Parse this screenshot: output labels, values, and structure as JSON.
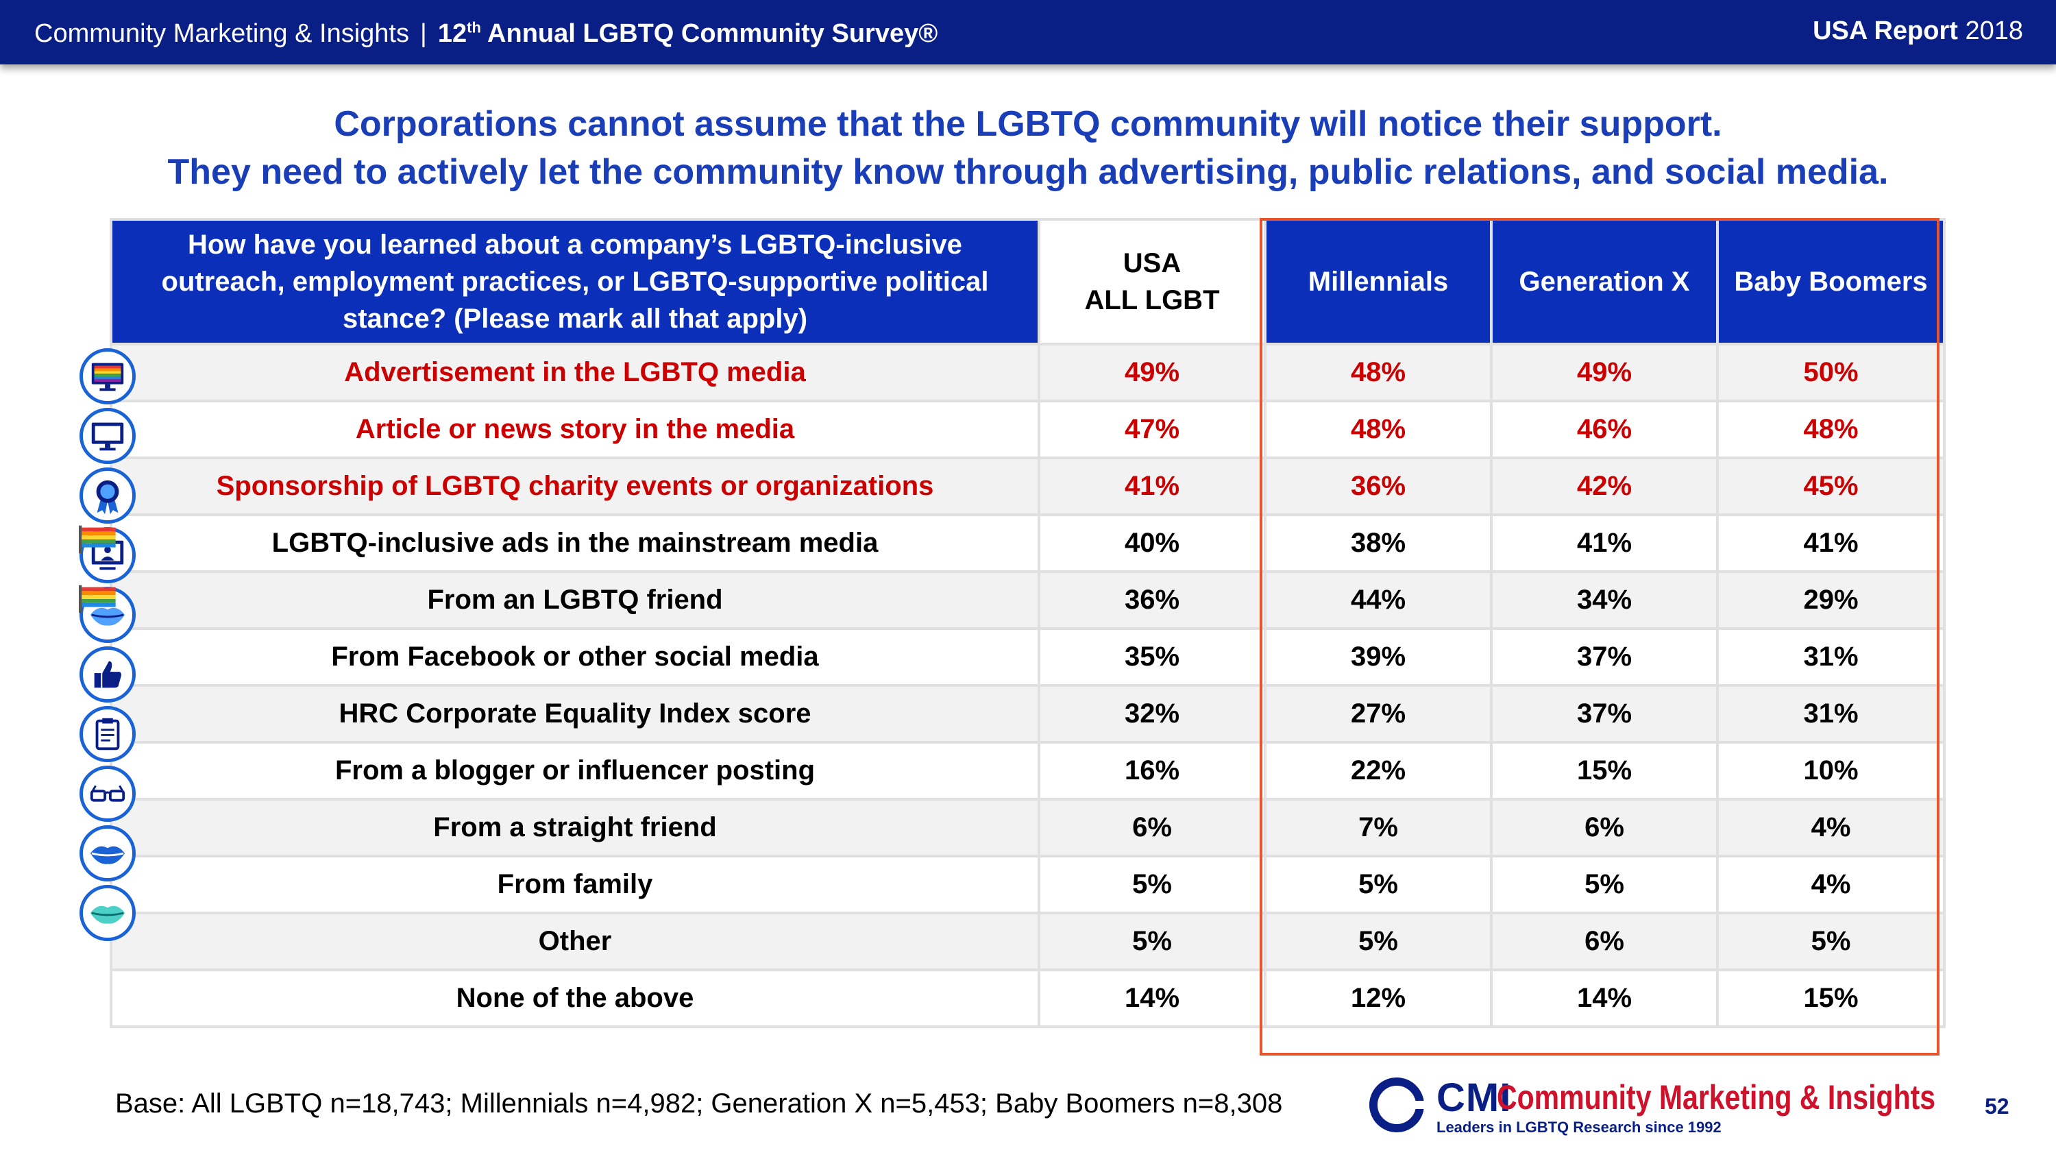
{
  "header": {
    "org": "Community Marketing & Insights",
    "separator": "|",
    "survey_prefix": "12",
    "survey_sup": "th",
    "survey_title": " Annual LGBTQ Community Survey®",
    "report_bold": "USA Report",
    "report_year": " 2018"
  },
  "headline": {
    "line1": "Corporations cannot assume that the LGBTQ community will notice their support.",
    "line2": "They need to actively let the community know through advertising, public relations, and social media."
  },
  "table": {
    "question": "How have you learned about a company’s LGBTQ-inclusive outreach, employment practices, or LGBTQ-supportive political stance? (Please mark all that apply)",
    "col_usa_line1": "USA",
    "col_usa_line2": "ALL LGBT",
    "col_millennials": "Millennials",
    "col_genx": "Generation X",
    "col_boomers": "Baby Boomers",
    "rows": [
      {
        "label": "Advertisement in the LGBTQ media",
        "usa": "49%",
        "mil": "48%",
        "genx": "49%",
        "boom": "50%",
        "highlight": true,
        "icon": "rainbow-monitor-icon"
      },
      {
        "label": "Article or news story in the media",
        "usa": "47%",
        "mil": "48%",
        "genx": "46%",
        "boom": "48%",
        "highlight": true,
        "icon": "monitor-icon"
      },
      {
        "label": "Sponsorship of LGBTQ charity events or organizations",
        "usa": "41%",
        "mil": "36%",
        "genx": "42%",
        "boom": "45%",
        "highlight": true,
        "icon": "award-ribbon-icon"
      },
      {
        "label": "LGBTQ-inclusive ads in the mainstream media",
        "usa": "40%",
        "mil": "38%",
        "genx": "41%",
        "boom": "41%",
        "highlight": false,
        "icon": "presenter-screen-icon"
      },
      {
        "label": "From an LGBTQ friend",
        "usa": "36%",
        "mil": "44%",
        "genx": "34%",
        "boom": "29%",
        "highlight": false,
        "icon": "lips-icon"
      },
      {
        "label": "From Facebook or other social media",
        "usa": "35%",
        "mil": "39%",
        "genx": "37%",
        "boom": "31%",
        "highlight": false,
        "icon": "thumbs-up-icon"
      },
      {
        "label": "HRC Corporate Equality Index score",
        "usa": "32%",
        "mil": "27%",
        "genx": "37%",
        "boom": "31%",
        "highlight": false,
        "icon": "clipboard-icon"
      },
      {
        "label": "From a blogger or influencer posting",
        "usa": "16%",
        "mil": "22%",
        "genx": "15%",
        "boom": "10%",
        "highlight": false,
        "icon": "glasses-icon"
      },
      {
        "label": "From a straight friend",
        "usa": "6%",
        "mil": "7%",
        "genx": "6%",
        "boom": "4%",
        "highlight": false,
        "icon": "lips-icon"
      },
      {
        "label": "From family",
        "usa": "5%",
        "mil": "5%",
        "genx": "5%",
        "boom": "4%",
        "highlight": false,
        "icon": "lips-icon"
      },
      {
        "label": "Other",
        "usa": "5%",
        "mil": "5%",
        "genx": "6%",
        "boom": "5%",
        "highlight": false,
        "icon": ""
      },
      {
        "label": "None of the above",
        "usa": "14%",
        "mil": "12%",
        "genx": "14%",
        "boom": "15%",
        "highlight": false,
        "icon": ""
      }
    ]
  },
  "base_note": "Base: All LGBTQ n=18,743; Millennials n=4,982; Generation X n=5,453; Baby Boomers n=8,308",
  "logo": {
    "abbr": "CMI",
    "name": "Community Marketing & Insights",
    "tagline": "Leaders in LGBTQ Research since 1992"
  },
  "page_number": "52",
  "colors": {
    "navy": "#0a1f86",
    "header_blue": "#0b2fb8",
    "headline_blue": "#1a3eb8",
    "highlight_red": "#cc0000",
    "frame_orange": "#e8552a"
  }
}
